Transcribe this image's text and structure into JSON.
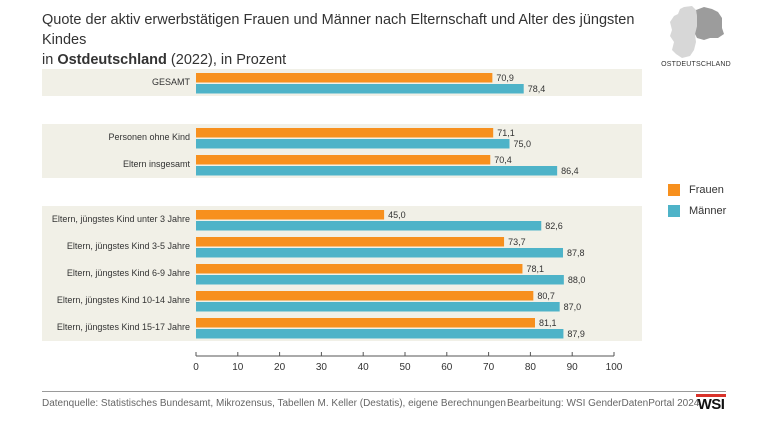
{
  "header": {
    "title_line1": "Quote der aktiv erwerbstätigen Frauen und Männer nach Elternschaft und Alter des jüngsten Kindes",
    "title_line2_prefix": "in ",
    "title_line2_bold": "Ostdeutschland",
    "title_line2_suffix": " (2022), in Prozent"
  },
  "map": {
    "label": "OSTDEUTSCHLAND",
    "icon": "germany-map-east-highlighted-icon",
    "base_color": "#d7d7d7",
    "highlight_color": "#9c9c9c"
  },
  "legend": {
    "items": [
      {
        "name": "Frauen",
        "color": "#f7901e"
      },
      {
        "name": "Männer",
        "color": "#4eb3c8"
      }
    ]
  },
  "chart_data": {
    "type": "bar",
    "orientation": "horizontal",
    "title": "Quote der aktiv erwerbstätigen Frauen und Männer nach Elternschaft und Alter des jüngsten Kindes in Ostdeutschland (2022), in Prozent",
    "categories": [
      "GESAMT",
      "Personen ohne Kind",
      "Eltern insgesamt",
      "Eltern, jüngstes Kind unter 3 Jahre",
      "Eltern, jüngstes Kind 3-5 Jahre",
      "Eltern, jüngstes Kind 6-9 Jahre",
      "Eltern, jüngstes Kind 10-14 Jahre",
      "Eltern, jüngstes Kind 15-17 Jahre"
    ],
    "groups": [
      [
        0
      ],
      [
        1,
        2
      ],
      [
        3,
        4,
        5,
        6,
        7
      ]
    ],
    "series": [
      {
        "name": "Frauen",
        "color": "#f7901e",
        "values": [
          70.9,
          71.1,
          70.4,
          45.0,
          73.7,
          78.1,
          80.7,
          81.1
        ],
        "labels": [
          "70,9",
          "71,1",
          "70,4",
          "45,0",
          "73,7",
          "78,1",
          "80,7",
          "81,1"
        ]
      },
      {
        "name": "Männer",
        "color": "#4eb3c8",
        "values": [
          78.4,
          75.0,
          86.4,
          82.6,
          87.8,
          88.0,
          87.0,
          87.9
        ],
        "labels": [
          "78,4",
          "75,0",
          "86,4",
          "82,6",
          "87,8",
          "88,0",
          "87,0",
          "87,9"
        ]
      }
    ],
    "xlim": [
      0,
      100
    ],
    "xticks": [
      0,
      10,
      20,
      30,
      40,
      50,
      60,
      70,
      80,
      90,
      100
    ],
    "xlabel": "",
    "ylabel": "",
    "group_band_color": "#f1f0e7",
    "grid": false
  },
  "footer": {
    "source": "Datenquelle: Statistisches Bundesamt, Mikrozensus, Tabellen M. Keller (Destatis), eigene Berechnungen",
    "credit": "Bearbeitung: WSI GenderDatenPortal 2024",
    "logo_text": "WSI"
  }
}
